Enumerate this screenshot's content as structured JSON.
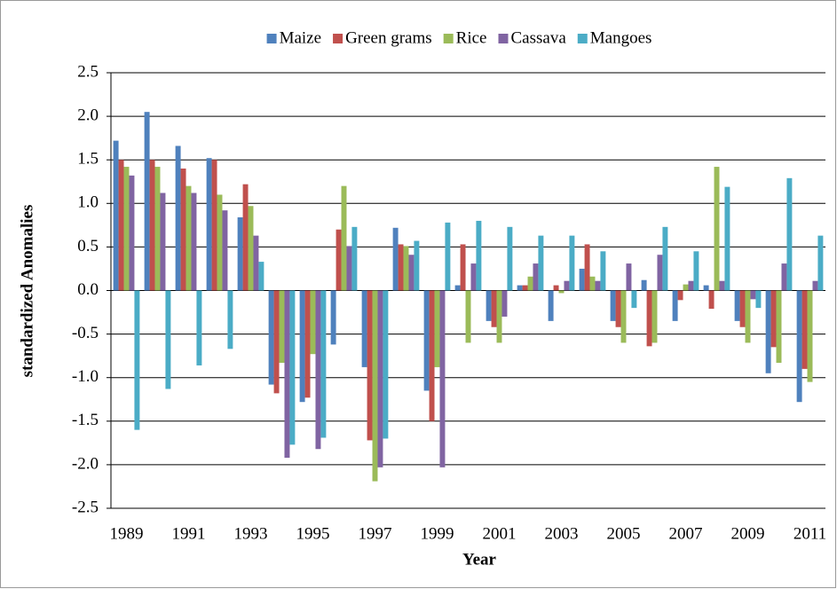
{
  "chart_data": {
    "type": "bar",
    "x_label": "Year",
    "y_label": "standardized Anomalies",
    "categories": [
      "1989",
      null,
      "1991",
      null,
      "1993",
      null,
      "1995",
      null,
      "1997",
      null,
      "1999",
      null,
      "2001",
      null,
      "2003",
      null,
      "2005",
      null,
      "2007",
      null,
      "2009",
      null,
      "2011"
    ],
    "series": [
      {
        "name": "Maize",
        "color": "#4f81bd",
        "values": [
          1.72,
          2.05,
          1.66,
          1.52,
          0.84,
          -1.08,
          -1.28,
          -0.62,
          -0.88,
          0.72,
          -1.15,
          0.06,
          -0.35,
          0.06,
          -0.35,
          0.25,
          -0.35,
          0.12,
          -0.35,
          0.06,
          -0.35,
          -0.95,
          -1.28
        ]
      },
      {
        "name": "Green grams",
        "color": "#c0504d",
        "values": [
          1.5,
          1.5,
          1.4,
          1.5,
          1.22,
          -1.18,
          -1.23,
          0.7,
          -1.72,
          0.53,
          -1.5,
          0.53,
          -0.42,
          0.06,
          0.06,
          0.53,
          -0.42,
          -0.64,
          -0.11,
          -0.21,
          -0.42,
          -0.65,
          -0.9
        ]
      },
      {
        "name": "Rice",
        "color": "#9bbb59",
        "values": [
          1.42,
          1.42,
          1.2,
          1.1,
          0.97,
          -0.83,
          -0.73,
          1.2,
          -2.19,
          0.51,
          -0.88,
          -0.6,
          -0.6,
          0.16,
          -0.03,
          0.16,
          -0.6,
          -0.6,
          0.07,
          1.42,
          -0.6,
          -0.83,
          -1.05
        ]
      },
      {
        "name": "Cassava",
        "color": "#8064a2",
        "values": [
          1.32,
          1.12,
          1.12,
          0.92,
          0.63,
          -1.92,
          -1.82,
          0.51,
          -2.03,
          0.41,
          -2.03,
          0.31,
          -0.3,
          0.31,
          0.11,
          0.11,
          0.31,
          0.41,
          0.11,
          0.11,
          -0.1,
          0.31,
          0.11
        ]
      },
      {
        "name": "Mangoes",
        "color": "#4bacc6",
        "values": [
          -1.6,
          -1.13,
          -0.86,
          -0.67,
          0.33,
          -1.77,
          -1.69,
          0.73,
          -1.7,
          0.57,
          0.78,
          0.8,
          0.73,
          0.63,
          0.63,
          0.45,
          -0.2,
          0.73,
          0.45,
          1.19,
          -0.2,
          1.29,
          0.63
        ]
      }
    ],
    "ylim": [
      -2.5,
      2.5
    ],
    "yticks": [
      2.5,
      {
        "value": 2,
        "label": "2.0"
      },
      1.5,
      {
        "value": 1,
        "label": "1.0"
      },
      0.5,
      {
        "value": 0,
        "label": "0.0"
      },
      -0.5,
      {
        "value": -1,
        "label": "-1.0"
      },
      -1.5,
      {
        "value": -2,
        "label": "-2.0"
      },
      -2.5
    ],
    "grid": true,
    "legend": "top"
  }
}
